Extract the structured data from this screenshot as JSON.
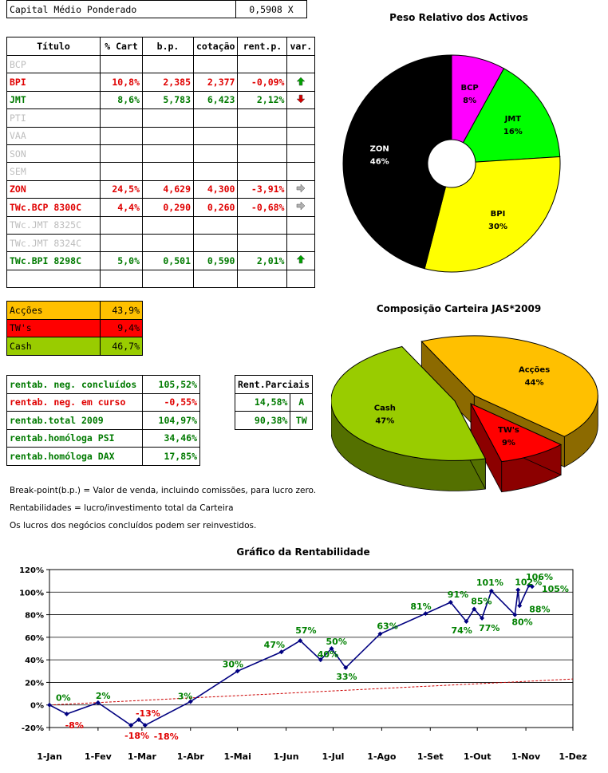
{
  "capital": {
    "label": "Capital Médio Ponderado",
    "value": "0,5908 X"
  },
  "assets_table": {
    "headers": [
      "Título",
      "% Cart",
      "b.p.",
      "cotação",
      "rent.p.",
      "var."
    ],
    "rows": [
      {
        "name": "BCP",
        "cart": "",
        "bp": "",
        "cot": "",
        "rent": "",
        "var": "",
        "style": "grey"
      },
      {
        "name": "BPI",
        "cart": "10,8%",
        "bp": "2,385",
        "cot": "2,377",
        "rent": "-0,09%",
        "var": "up",
        "style": "red"
      },
      {
        "name": "JMT",
        "cart": "8,6%",
        "bp": "5,783",
        "cot": "6,423",
        "rent": "2,12%",
        "var": "down",
        "style": "green"
      },
      {
        "name": "PTI",
        "cart": "",
        "bp": "",
        "cot": "",
        "rent": "",
        "var": "",
        "style": "grey"
      },
      {
        "name": "VAA",
        "cart": "",
        "bp": "",
        "cot": "",
        "rent": "",
        "var": "",
        "style": "grey"
      },
      {
        "name": "SON",
        "cart": "",
        "bp": "",
        "cot": "",
        "rent": "",
        "var": "",
        "style": "grey"
      },
      {
        "name": "SEM",
        "cart": "",
        "bp": "",
        "cot": "",
        "rent": "",
        "var": "",
        "style": "grey"
      },
      {
        "name": "ZON",
        "cart": "24,5%",
        "bp": "4,629",
        "cot": "4,300",
        "rent": "-3,91%",
        "var": "right",
        "style": "red"
      },
      {
        "name": "TWc.BCP 8300C",
        "cart": "4,4%",
        "bp": "0,290",
        "cot": "0,260",
        "rent": "-0,68%",
        "var": "right",
        "style": "red"
      },
      {
        "name": "TWc.JMT 8325C",
        "cart": "",
        "bp": "",
        "cot": "",
        "rent": "",
        "var": "",
        "style": "grey"
      },
      {
        "name": "TWc.JMT 8324C",
        "cart": "",
        "bp": "",
        "cot": "",
        "rent": "",
        "var": "",
        "style": "grey"
      },
      {
        "name": "TWc.BPI 8298C",
        "cart": "5,0%",
        "bp": "0,501",
        "cot": "0,590",
        "rent": "2,01%",
        "var": "up",
        "style": "green"
      },
      {
        "name": "",
        "cart": "",
        "bp": "",
        "cot": "",
        "rent": "",
        "var": "",
        "style": "grey"
      }
    ]
  },
  "composition_table": [
    {
      "label": "Acções",
      "value": "43,9%",
      "color": "#ffc000"
    },
    {
      "label": "TW's",
      "value": "9,4%",
      "color": "#ff0000"
    },
    {
      "label": "Cash",
      "value": "46,7%",
      "color": "#99cc00"
    }
  ],
  "rent_table": [
    {
      "label": "rentab. neg. concluídos",
      "value": "105,52%",
      "style": "green"
    },
    {
      "label": "rentab. neg. em curso",
      "value": "-0,55%",
      "style": "red"
    },
    {
      "label": "rentab.total 2009",
      "value": "104,97%",
      "style": "green"
    },
    {
      "label": "rentab.homóloga PSI",
      "value": "34,46%",
      "style": "green"
    },
    {
      "label": "rentab.homóloga DAX",
      "value": "17,85%",
      "style": "green"
    }
  ],
  "parciais": {
    "header": "Rent.Parciais",
    "rows": [
      {
        "value": "14,58%",
        "tag": "A"
      },
      {
        "value": "90,38%",
        "tag": "TW"
      }
    ]
  },
  "notes": [
    "Break-point(b.p.) = Valor de venda, incluindo comissões, para lucro zero.",
    "Rentabilidades = lucro/investimento total da Carteira",
    "Os lucros dos negócios concluídos podem ser reinvestidos."
  ],
  "chart_data": [
    {
      "type": "pie",
      "title": "Peso Relativo dos Activos",
      "style": "doughnut",
      "colors": {
        "BCP": "#ff00ff",
        "JMT": "#00ff00",
        "BPI": "#ffff00",
        "ZON": "#000000"
      },
      "slices": [
        {
          "label": "BCP",
          "value": 8,
          "text": "8%"
        },
        {
          "label": "JMT",
          "value": 16,
          "text": "16%"
        },
        {
          "label": "BPI",
          "value": 30,
          "text": "30%"
        },
        {
          "label": "ZON",
          "value": 46,
          "text": "46%"
        }
      ]
    },
    {
      "type": "pie",
      "title": "Composição Carteira JAS*2009",
      "style": "3d-exploded",
      "colors": {
        "Acções": "#ffc000",
        "TW's": "#ff0000",
        "Cash": "#99cc00"
      },
      "slices": [
        {
          "label": "Acções",
          "value": 44,
          "text": "44%"
        },
        {
          "label": "TW's",
          "value": 9,
          "text": "9%"
        },
        {
          "label": "Cash",
          "value": 47,
          "text": "47%"
        }
      ]
    },
    {
      "type": "line",
      "title": "Gráfico da Rentabilidade",
      "ylim": [
        -20,
        120
      ],
      "yticks": [
        "-20%",
        "0%",
        "20%",
        "40%",
        "60%",
        "80%",
        "100%",
        "120%"
      ],
      "xticks": [
        "1-Jan",
        "1-Fev",
        "1-Mar",
        "1-Abr",
        "1-Mai",
        "1-Jun",
        "1-Jul",
        "1-Ago",
        "1-Set",
        "1-Out",
        "1-Nov",
        "1-Dez"
      ],
      "grid": true,
      "line_color": "#000080",
      "trend_color": "#cc0000",
      "series": [
        {
          "x": [
            "2009-01-01",
            "2009-01-12",
            "2009-02-01",
            "2009-02-22",
            "2009-02-27",
            "2009-03-03",
            "2009-04-01",
            "2009-05-01",
            "2009-05-29",
            "2009-06-10",
            "2009-06-23",
            "2009-06-30",
            "2009-07-09",
            "2009-07-31",
            "2009-08-29",
            "2009-09-14",
            "2009-09-24",
            "2009-09-29",
            "2009-10-04",
            "2009-10-10",
            "2009-10-25",
            "2009-10-27",
            "2009-10-28",
            "2009-11-03",
            "2009-11-05"
          ],
          "y": [
            0,
            -8,
            2,
            -18,
            -13,
            -18,
            3,
            30,
            47,
            57,
            40,
            50,
            33,
            63,
            81,
            91,
            74,
            85,
            77,
            101,
            80,
            102,
            88,
            106,
            105
          ],
          "labels": [
            "0%",
            "-8%",
            "2%",
            "-18%",
            "-13%",
            "-18%",
            "3%",
            "30%",
            "47%",
            "57%",
            "40%",
            "50%",
            "33%",
            "63%",
            "81%",
            "91%",
            "74%",
            "85%",
            "77%",
            "101%",
            "80%",
            "102%",
            "88%",
            "106%",
            "105%"
          ]
        }
      ],
      "trend": {
        "x": [
          "2009-01-01",
          "2009-12-01"
        ],
        "y": [
          0,
          23
        ]
      }
    }
  ]
}
